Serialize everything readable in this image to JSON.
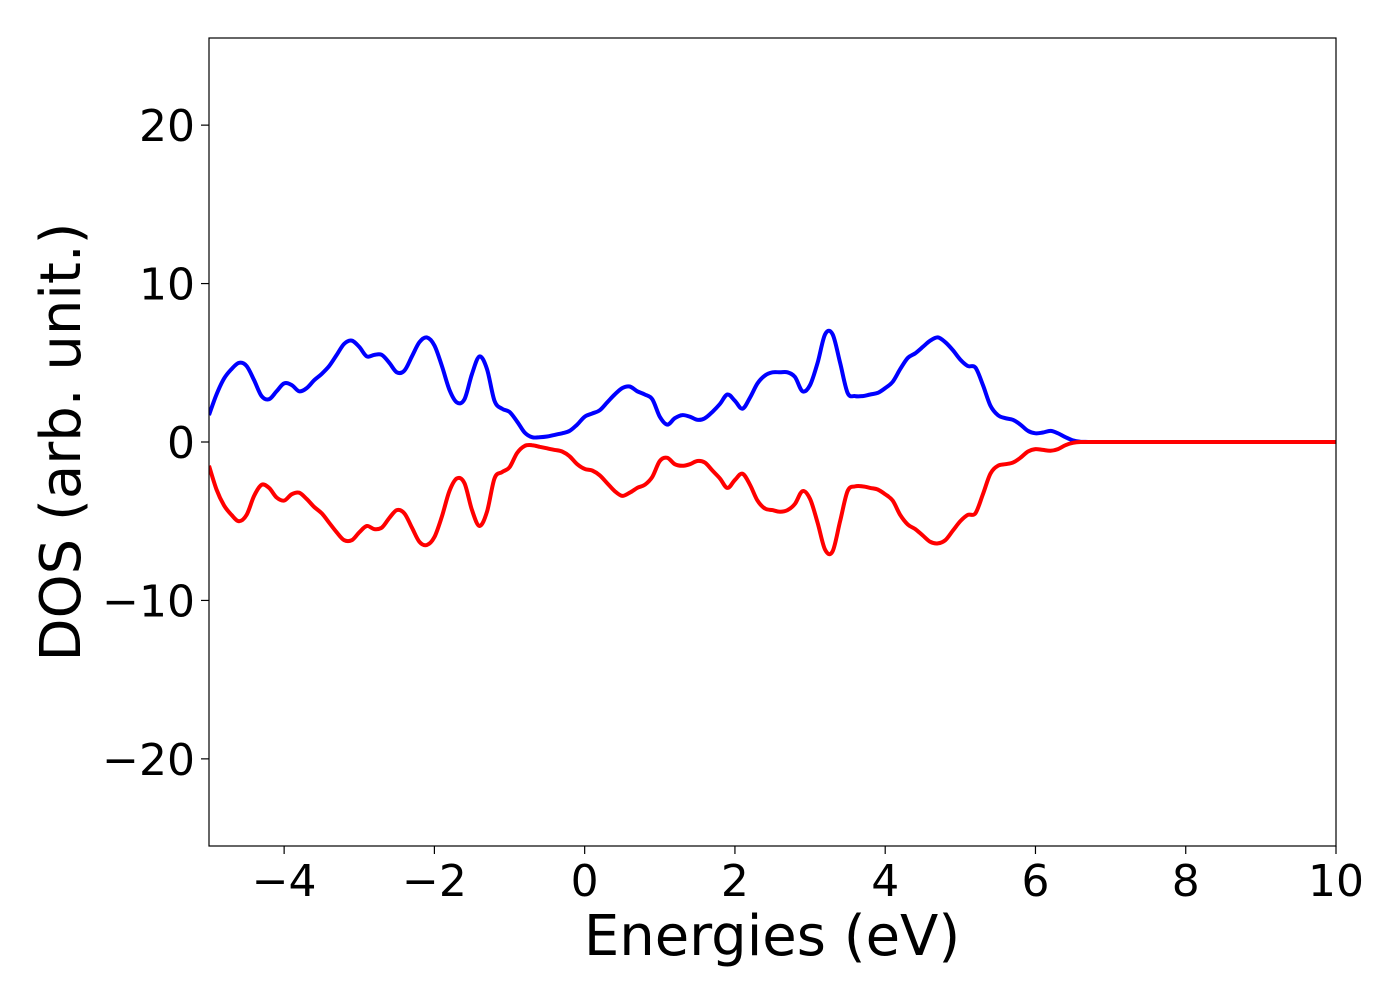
{
  "chart_data": {
    "type": "line",
    "title": "",
    "xlabel": "Energies (eV)",
    "ylabel": "DOS (arb. unit.)",
    "xlim": [
      -5,
      10
    ],
    "ylim": [
      -25.5,
      25.5
    ],
    "xticks": [
      -4,
      -2,
      0,
      2,
      4,
      6,
      8,
      10
    ],
    "xtick_labels": [
      "−4",
      "−2",
      "0",
      "2",
      "4",
      "6",
      "8",
      "10"
    ],
    "yticks": [
      -20,
      -10,
      0,
      10,
      20
    ],
    "ytick_labels": [
      "−20",
      "−10",
      "0",
      "10",
      "20"
    ],
    "grid": false,
    "legend": "none",
    "series": [
      {
        "color": "#0000ff",
        "x": [
          -5.0,
          -4.9,
          -4.8,
          -4.7,
          -4.6,
          -4.5,
          -4.4,
          -4.3,
          -4.2,
          -4.1,
          -4.0,
          -3.9,
          -3.8,
          -3.7,
          -3.6,
          -3.5,
          -3.4,
          -3.3,
          -3.2,
          -3.1,
          -3.0,
          -2.9,
          -2.8,
          -2.7,
          -2.6,
          -2.5,
          -2.4,
          -2.3,
          -2.2,
          -2.1,
          -2.0,
          -1.9,
          -1.8,
          -1.7,
          -1.6,
          -1.5,
          -1.4,
          -1.3,
          -1.2,
          -1.1,
          -1.0,
          -0.9,
          -0.8,
          -0.7,
          -0.6,
          -0.5,
          -0.4,
          -0.3,
          -0.2,
          -0.1,
          0.0,
          0.1,
          0.2,
          0.3,
          0.4,
          0.5,
          0.6,
          0.7,
          0.8,
          0.9,
          1.0,
          1.1,
          1.2,
          1.3,
          1.4,
          1.5,
          1.6,
          1.7,
          1.8,
          1.9,
          2.0,
          2.1,
          2.2,
          2.3,
          2.4,
          2.5,
          2.6,
          2.7,
          2.8,
          2.9,
          3.0,
          3.1,
          3.2,
          3.3,
          3.4,
          3.5,
          3.6,
          3.7,
          3.8,
          3.9,
          4.0,
          4.1,
          4.2,
          4.3,
          4.4,
          4.5,
          4.6,
          4.7,
          4.8,
          4.9,
          5.0,
          5.1,
          5.2,
          5.3,
          5.4,
          5.5,
          5.6,
          5.7,
          5.8,
          5.9,
          6.0,
          6.1,
          6.2,
          6.3,
          6.4,
          6.5,
          6.6,
          6.7,
          6.8,
          6.9,
          7.0,
          7.1,
          7.2,
          7.3,
          7.4,
          7.5,
          7.6,
          7.7,
          7.8,
          7.9,
          8.0,
          8.1,
          8.2,
          8.3,
          8.4,
          8.5,
          8.6,
          8.7,
          8.8,
          8.9,
          9.0,
          9.1,
          9.2,
          9.3,
          9.4,
          9.5,
          9.6,
          9.7,
          9.8,
          9.9,
          10.0
        ],
        "y": [
          1.7,
          3.0,
          4.0,
          4.6,
          5.0,
          4.8,
          3.9,
          2.9,
          2.7,
          3.2,
          3.7,
          3.6,
          3.2,
          3.4,
          3.9,
          4.3,
          4.8,
          5.5,
          6.2,
          6.4,
          6.0,
          5.4,
          5.5,
          5.5,
          5.0,
          4.4,
          4.5,
          5.4,
          6.3,
          6.6,
          6.1,
          4.8,
          3.3,
          2.5,
          2.7,
          4.3,
          5.4,
          4.6,
          2.6,
          2.1,
          1.9,
          1.3,
          0.6,
          0.3,
          0.3,
          0.35,
          0.45,
          0.55,
          0.7,
          1.1,
          1.6,
          1.8,
          2.0,
          2.5,
          3.0,
          3.4,
          3.5,
          3.2,
          3.0,
          2.7,
          1.6,
          1.1,
          1.5,
          1.7,
          1.6,
          1.4,
          1.5,
          1.9,
          2.4,
          3.0,
          2.6,
          2.1,
          2.8,
          3.7,
          4.2,
          4.4,
          4.4,
          4.4,
          4.1,
          3.2,
          3.6,
          5.0,
          6.8,
          6.8,
          5.0,
          3.1,
          2.9,
          2.9,
          3.0,
          3.1,
          3.4,
          3.8,
          4.6,
          5.3,
          5.6,
          6.0,
          6.4,
          6.6,
          6.3,
          5.8,
          5.2,
          4.8,
          4.7,
          3.6,
          2.3,
          1.7,
          1.5,
          1.4,
          1.1,
          0.7,
          0.55,
          0.6,
          0.7,
          0.55,
          0.3,
          0.1,
          0.02,
          0.0,
          0.0,
          0.0,
          0.0,
          0.0,
          0.0,
          0.0,
          0.0,
          0.0,
          0.0,
          0.0,
          0.0,
          0.0,
          0.0,
          0.0,
          0.0,
          0.0,
          0.0,
          0.0,
          0.0,
          0.0,
          0.0,
          0.0,
          0.0,
          0.0,
          0.0,
          0.0,
          0.0,
          0.0,
          0.0,
          0.0,
          0.0,
          0.0,
          0.0
        ]
      },
      {
        "color": "#ff0000",
        "x": [
          -5.0,
          -4.9,
          -4.8,
          -4.7,
          -4.6,
          -4.5,
          -4.4,
          -4.3,
          -4.2,
          -4.1,
          -4.0,
          -3.9,
          -3.8,
          -3.7,
          -3.6,
          -3.5,
          -3.4,
          -3.3,
          -3.2,
          -3.1,
          -3.0,
          -2.9,
          -2.8,
          -2.7,
          -2.6,
          -2.5,
          -2.4,
          -2.3,
          -2.2,
          -2.1,
          -2.0,
          -1.9,
          -1.8,
          -1.7,
          -1.6,
          -1.5,
          -1.4,
          -1.3,
          -1.2,
          -1.1,
          -1.0,
          -0.9,
          -0.8,
          -0.7,
          -0.6,
          -0.5,
          -0.4,
          -0.3,
          -0.2,
          -0.1,
          0.0,
          0.1,
          0.2,
          0.3,
          0.4,
          0.5,
          0.6,
          0.7,
          0.8,
          0.9,
          1.0,
          1.1,
          1.2,
          1.3,
          1.4,
          1.5,
          1.6,
          1.7,
          1.8,
          1.9,
          2.0,
          2.1,
          2.2,
          2.3,
          2.4,
          2.5,
          2.6,
          2.7,
          2.8,
          2.9,
          3.0,
          3.1,
          3.2,
          3.3,
          3.4,
          3.5,
          3.6,
          3.7,
          3.8,
          3.9,
          4.0,
          4.1,
          4.2,
          4.3,
          4.4,
          4.5,
          4.6,
          4.7,
          4.8,
          4.9,
          5.0,
          5.1,
          5.2,
          5.3,
          5.4,
          5.5,
          5.6,
          5.7,
          5.8,
          5.9,
          6.0,
          6.1,
          6.2,
          6.3,
          6.4,
          6.5,
          6.6,
          6.7,
          6.8,
          6.9,
          7.0,
          7.1,
          7.2,
          7.3,
          7.4,
          7.5,
          7.6,
          7.7,
          7.8,
          7.9,
          8.0,
          8.1,
          8.2,
          8.3,
          8.4,
          8.5,
          8.6,
          8.7,
          8.8,
          8.9,
          9.0,
          9.1,
          9.2,
          9.3,
          9.4,
          9.5,
          9.6,
          9.7,
          9.8,
          9.9,
          10.0
        ],
        "y": [
          -1.5,
          -3.0,
          -4.0,
          -4.6,
          -5.0,
          -4.6,
          -3.4,
          -2.7,
          -2.9,
          -3.5,
          -3.7,
          -3.3,
          -3.2,
          -3.6,
          -4.1,
          -4.5,
          -5.1,
          -5.7,
          -6.2,
          -6.2,
          -5.7,
          -5.3,
          -5.5,
          -5.4,
          -4.8,
          -4.3,
          -4.5,
          -5.4,
          -6.3,
          -6.5,
          -6.0,
          -4.7,
          -3.1,
          -2.3,
          -2.6,
          -4.3,
          -5.3,
          -4.4,
          -2.3,
          -1.9,
          -1.6,
          -0.7,
          -0.25,
          -0.2,
          -0.3,
          -0.4,
          -0.5,
          -0.6,
          -0.9,
          -1.4,
          -1.7,
          -1.8,
          -2.1,
          -2.6,
          -3.1,
          -3.4,
          -3.2,
          -2.9,
          -2.7,
          -2.2,
          -1.2,
          -1.0,
          -1.4,
          -1.5,
          -1.4,
          -1.2,
          -1.3,
          -1.8,
          -2.3,
          -2.9,
          -2.4,
          -2.0,
          -2.7,
          -3.7,
          -4.2,
          -4.3,
          -4.4,
          -4.3,
          -3.9,
          -3.1,
          -3.6,
          -5.1,
          -6.8,
          -6.9,
          -5.0,
          -3.1,
          -2.8,
          -2.8,
          -2.9,
          -3.0,
          -3.3,
          -3.7,
          -4.6,
          -5.2,
          -5.5,
          -5.9,
          -6.3,
          -6.4,
          -6.2,
          -5.6,
          -5.0,
          -4.6,
          -4.5,
          -3.3,
          -2.0,
          -1.5,
          -1.4,
          -1.3,
          -1.0,
          -0.6,
          -0.45,
          -0.5,
          -0.55,
          -0.45,
          -0.2,
          -0.05,
          0.0,
          0.0,
          0.0,
          0.0,
          0.0,
          0.0,
          0.0,
          0.0,
          0.0,
          0.0,
          0.0,
          0.0,
          0.0,
          0.0,
          0.0,
          0.0,
          0.0,
          0.0,
          0.0,
          0.0,
          0.0,
          0.0,
          0.0,
          0.0,
          0.0,
          0.0,
          0.0,
          0.0,
          0.0,
          0.0,
          0.0,
          0.0,
          0.0,
          0.0,
          0.0
        ]
      }
    ]
  }
}
